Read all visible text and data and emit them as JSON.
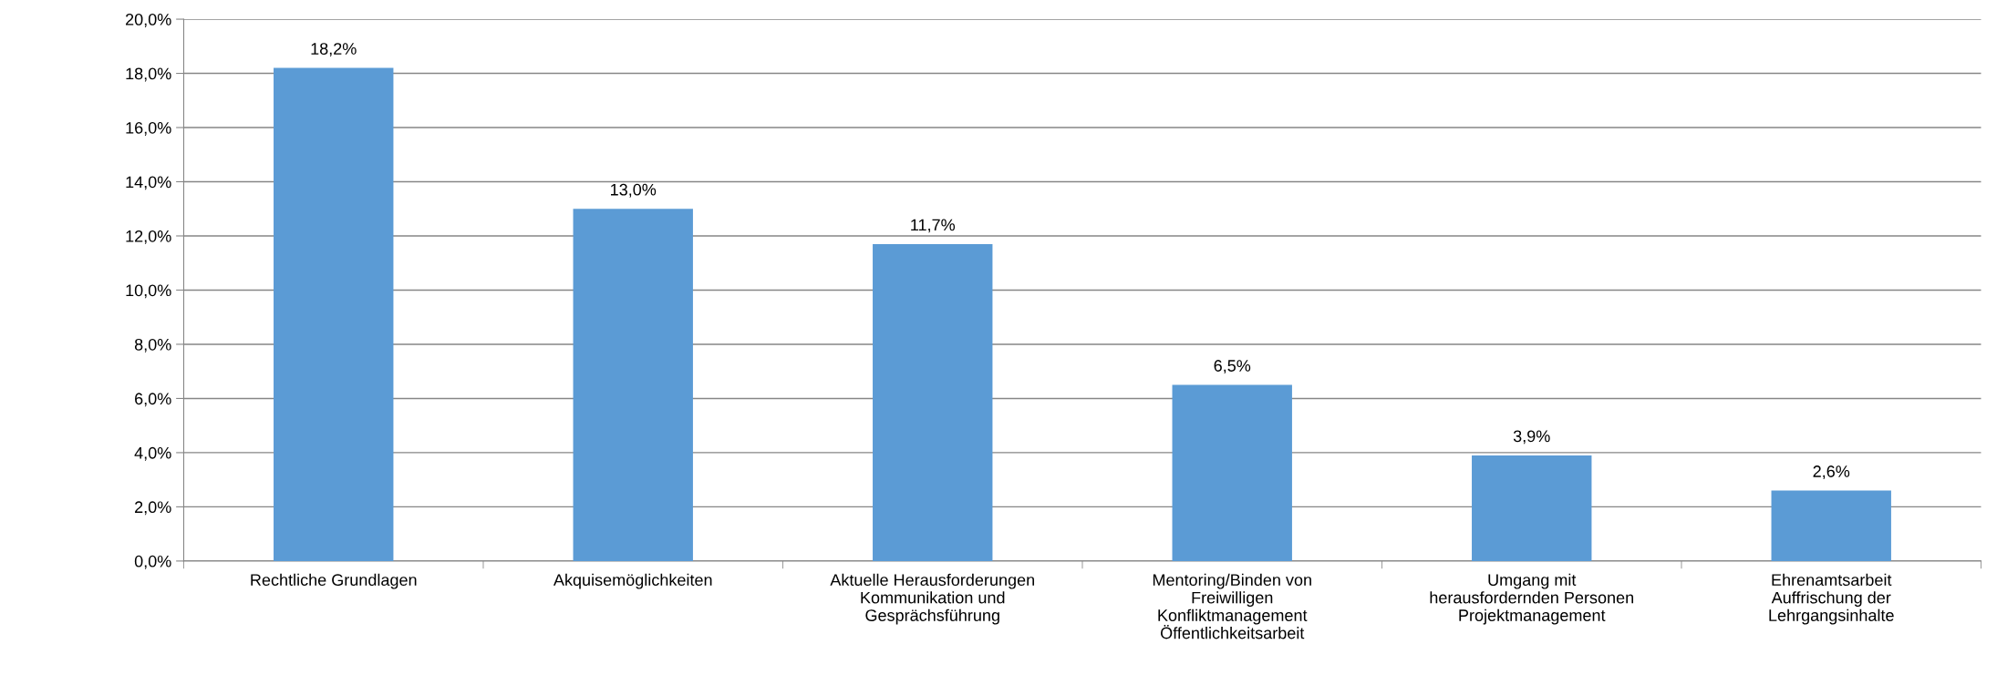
{
  "chart_data": {
    "type": "bar",
    "categories": [
      "Rechtliche Grundlagen",
      "Akquisemöglichkeiten",
      "Aktuelle Herausforderungen\nKommunikation und\nGesprächsführung",
      "Mentoring/Binden von\nFreiwilligen\nKonfliktmanagement\nÖffentlichkeitsarbeit",
      "Umgang mit\nherausfordernden Personen\nProjektmanagement",
      "Ehrenamtsarbeit\nAuffrischung der\nLehrgangsinhalte"
    ],
    "values": [
      18.2,
      13.0,
      11.7,
      6.5,
      3.9,
      2.6
    ],
    "value_labels": [
      "18,2%",
      "13,0%",
      "11,7%",
      "6,5%",
      "3,9%",
      "2,6%"
    ],
    "color": "#5b9bd5",
    "ylim": [
      0,
      20
    ],
    "yticks": [
      {
        "value": 0,
        "label": "0,0%"
      },
      {
        "value": 2,
        "label": "2,0%"
      },
      {
        "value": 4,
        "label": "4,0%"
      },
      {
        "value": 6,
        "label": "6,0%"
      },
      {
        "value": 8,
        "label": "8,0%"
      },
      {
        "value": 10,
        "label": "10,0%"
      },
      {
        "value": 12,
        "label": "12,0%"
      },
      {
        "value": 14,
        "label": "14,0%"
      },
      {
        "value": 16,
        "label": "16,0%"
      },
      {
        "value": 18,
        "label": "18,0%"
      },
      {
        "value": 20,
        "label": "20,0%"
      }
    ],
    "grid": "y",
    "legend": false
  }
}
